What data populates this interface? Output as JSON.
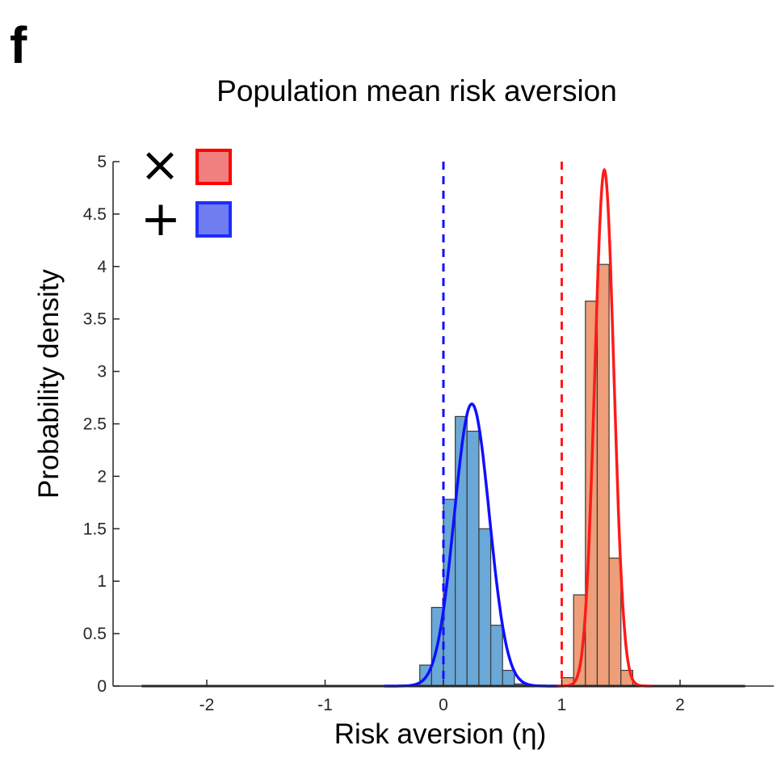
{
  "panel_label": "f",
  "chart_data": {
    "type": "bar",
    "title": "Population mean risk aversion",
    "xlabel": "Risk aversion (η)",
    "ylabel": "Probability density",
    "xlim": [
      -2.5,
      2.8
    ],
    "ylim": [
      0,
      5
    ],
    "xticks": [
      -2,
      -1,
      0,
      1,
      2
    ],
    "xtick_labels": [
      "-2",
      "-1",
      "0",
      "1",
      "2"
    ],
    "yticks": [
      0,
      0.5,
      1,
      1.5,
      2,
      2.5,
      3,
      3.5,
      4,
      4.5,
      5
    ],
    "ytick_labels": [
      "0",
      "0.5",
      "1",
      "1.5",
      "2",
      "2.5",
      "3",
      "3.5",
      "4",
      "4.5",
      "5"
    ],
    "grid": false,
    "legend": {
      "placement": "top-left",
      "entries": [
        {
          "marker": "×",
          "color": "#ff0000",
          "fill": "#f08080"
        },
        {
          "marker": "+",
          "color": "#1f2dff",
          "fill": "#6f7df0"
        }
      ]
    },
    "series": [
      {
        "histogram": {
          "bin_width": 0.1,
          "bin_starts": [
            -0.2,
            -0.1,
            0.0,
            0.1,
            0.2,
            0.3,
            0.4,
            0.5,
            0.6
          ],
          "values": [
            0.2,
            0.75,
            1.78,
            2.57,
            2.43,
            1.5,
            0.58,
            0.15,
            0.02
          ]
        },
        "fit": {
          "mean": 0.24,
          "sd": 0.148,
          "peak": 2.69
        },
        "reference_line": 0,
        "line_color": "#1010ff",
        "bar_color": "#6aa8d8"
      },
      {
        "histogram": {
          "bin_width": 0.1,
          "bin_starts": [
            1.0,
            1.1,
            1.2,
            1.3,
            1.4,
            1.5,
            1.6
          ],
          "values": [
            0.08,
            0.87,
            3.67,
            4.02,
            1.22,
            0.15,
            0.01
          ]
        },
        "fit": {
          "mean": 1.36,
          "sd": 0.081,
          "peak": 4.92
        },
        "reference_line": 1,
        "line_color": "#ff1a1a",
        "bar_color": "#ee9e78"
      }
    ]
  }
}
